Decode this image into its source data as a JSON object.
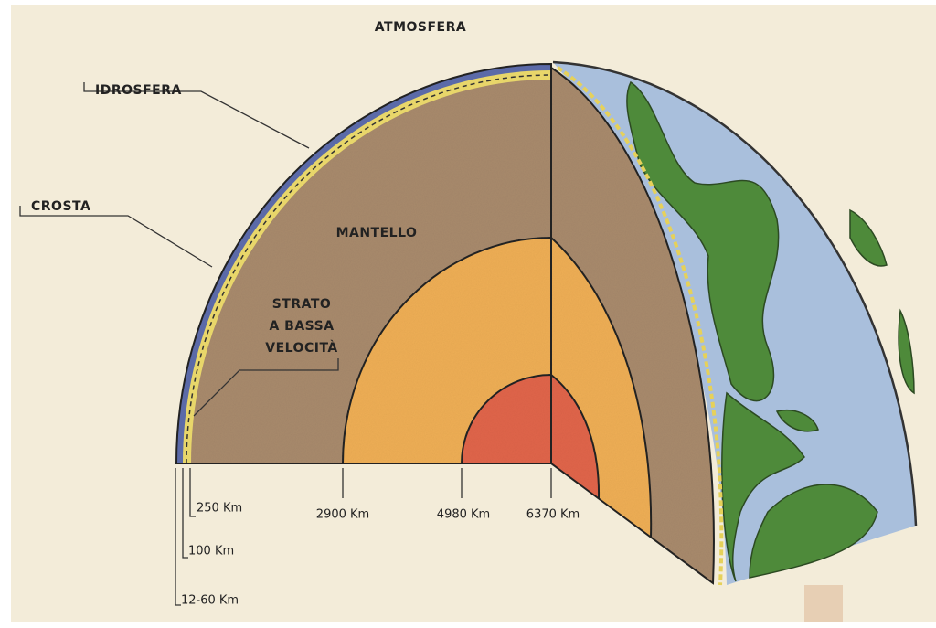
{
  "title": "ATMOSFERA",
  "labels": {
    "idrosfera": "IDROSFERA",
    "crosta": "CROSTA",
    "mantello": "MANTELLO",
    "strato": [
      "STRATO",
      "A BASSA",
      "VELOCITÀ"
    ]
  },
  "depths": [
    "250 Km",
    "100 Km",
    "12-60 Km",
    "2900 Km",
    "4980 Km",
    "6370 Km"
  ]
}
